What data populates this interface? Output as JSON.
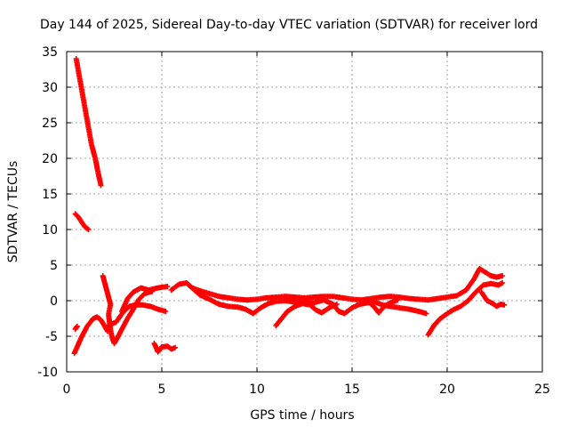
{
  "chart_data": {
    "type": "scatter",
    "title": "Day 144 of 2025, Sidereal Day-to-day VTEC variation (SDTVAR) for receiver lord",
    "xlabel": "GPS time / hours",
    "ylabel": "SDTVAR / TECUs",
    "xlim": [
      0,
      25
    ],
    "ylim": [
      -10,
      35
    ],
    "xticks": [
      0,
      5,
      10,
      15,
      20,
      25
    ],
    "yticks": [
      -10,
      -5,
      0,
      5,
      10,
      15,
      20,
      25,
      30,
      35
    ],
    "grid": true,
    "marker_color": "#ff0000",
    "series": [
      {
        "name": "SDTVAR",
        "segments": [
          [
            [
              0.5,
              34
            ],
            [
              0.7,
              31
            ],
            [
              0.9,
              28
            ],
            [
              1.1,
              25
            ],
            [
              1.3,
              22
            ],
            [
              1.5,
              20
            ],
            [
              1.65,
              18
            ],
            [
              1.8,
              16.2
            ]
          ],
          [
            [
              0.45,
              12.2
            ],
            [
              0.6,
              11.8
            ],
            [
              0.8,
              11
            ],
            [
              0.95,
              10.4
            ],
            [
              1.15,
              10
            ]
          ],
          [
            [
              0.4,
              -7.4
            ],
            [
              0.55,
              -6.5
            ],
            [
              0.8,
              -5
            ],
            [
              1.1,
              -3.5
            ],
            [
              1.4,
              -2.5
            ],
            [
              1.6,
              -2.3
            ],
            [
              1.8,
              -2.7
            ],
            [
              2.0,
              -3.6
            ],
            [
              2.15,
              -4.3
            ]
          ],
          [
            [
              0.45,
              -4
            ],
            [
              0.55,
              -3.6
            ]
          ],
          [
            [
              1.9,
              3.5
            ],
            [
              2.0,
              2.5
            ],
            [
              2.1,
              1.5
            ],
            [
              2.2,
              0.5
            ],
            [
              2.3,
              -0.5
            ],
            [
              2.2,
              -2
            ],
            [
              2.3,
              -4
            ],
            [
              2.4,
              -5.3
            ],
            [
              2.5,
              -6
            ],
            [
              2.65,
              -5.3
            ],
            [
              2.9,
              -4
            ],
            [
              3.2,
              -2.5
            ],
            [
              3.5,
              -1.2
            ],
            [
              3.8,
              0.2
            ],
            [
              4.1,
              1
            ],
            [
              4.5,
              1.3
            ]
          ],
          [
            [
              2.2,
              -3.5
            ],
            [
              2.6,
              -3
            ],
            [
              3.0,
              -1.5
            ],
            [
              3.3,
              -0.8
            ],
            [
              3.6,
              -0.6
            ],
            [
              4.0,
              -0.6
            ],
            [
              4.4,
              -0.8
            ],
            [
              4.8,
              -1.2
            ],
            [
              5.2,
              -1.5
            ]
          ],
          [
            [
              2.9,
              -1.5
            ],
            [
              3.2,
              0.3
            ],
            [
              3.5,
              1.2
            ],
            [
              3.9,
              1.8
            ],
            [
              4.3,
              1.5
            ],
            [
              4.8,
              1.8
            ],
            [
              5.3,
              2
            ]
          ],
          [
            [
              4.6,
              -6
            ],
            [
              4.8,
              -7.2
            ],
            [
              5.0,
              -6.5
            ],
            [
              5.3,
              -6.4
            ],
            [
              5.5,
              -6.8
            ],
            [
              5.7,
              -6.6
            ]
          ],
          [
            [
              5.5,
              1.5
            ],
            [
              5.9,
              2.3
            ],
            [
              6.3,
              2.5
            ],
            [
              6.6,
              1.8
            ],
            [
              7.0,
              1.4
            ],
            [
              7.5,
              1
            ],
            [
              8.0,
              0.6
            ],
            [
              8.5,
              0.4
            ],
            [
              9.0,
              0.2
            ],
            [
              9.5,
              0.1
            ],
            [
              10.0,
              0.2
            ],
            [
              10.5,
              0.4
            ],
            [
              11.0,
              0.5
            ],
            [
              11.5,
              0.6
            ],
            [
              12.0,
              0.5
            ],
            [
              12.5,
              0.4
            ],
            [
              13.0,
              0.5
            ],
            [
              13.5,
              0.6
            ],
            [
              14.0,
              0.6
            ],
            [
              14.5,
              0.4
            ],
            [
              15.0,
              0.2
            ],
            [
              15.5,
              0.1
            ],
            [
              16.0,
              0.3
            ],
            [
              16.5,
              0.5
            ],
            [
              17.0,
              0.6
            ],
            [
              17.5,
              0.5
            ],
            [
              18.0,
              0.3
            ],
            [
              18.5,
              0.2
            ],
            [
              19.0,
              0.1
            ],
            [
              19.5,
              0.3
            ],
            [
              20.0,
              0.5
            ],
            [
              20.5,
              0.7
            ],
            [
              21.0,
              1.5
            ],
            [
              21.4,
              3
            ],
            [
              21.7,
              4.5
            ],
            [
              22.0,
              4
            ],
            [
              22.3,
              3.5
            ],
            [
              22.6,
              3.3
            ],
            [
              22.9,
              3.5
            ]
          ],
          [
            [
              6.5,
              2
            ],
            [
              7.0,
              0.8
            ],
            [
              7.5,
              0.2
            ],
            [
              8.0,
              -0.5
            ],
            [
              8.5,
              -0.8
            ],
            [
              9.0,
              -0.9
            ],
            [
              9.4,
              -1.2
            ],
            [
              9.8,
              -1.8
            ],
            [
              10.2,
              -1
            ],
            [
              10.6,
              -0.4
            ],
            [
              11.0,
              -0.1
            ],
            [
              11.5,
              0
            ],
            [
              12.0,
              -0.2
            ],
            [
              12.5,
              0
            ],
            [
              13.0,
              -0.3
            ],
            [
              13.5,
              0.1
            ],
            [
              14.0,
              -0.5
            ],
            [
              14.3,
              -1.5
            ],
            [
              14.6,
              -1.8
            ],
            [
              15.0,
              -1
            ],
            [
              15.4,
              -0.5
            ],
            [
              15.8,
              -0.3
            ],
            [
              16.2,
              -0.2
            ],
            [
              16.6,
              -0.6
            ],
            [
              17.0,
              -0.8
            ],
            [
              17.5,
              -1
            ],
            [
              18.0,
              -1.2
            ],
            [
              18.5,
              -1.5
            ],
            [
              18.9,
              -1.8
            ]
          ],
          [
            [
              11.0,
              -3.5
            ],
            [
              11.3,
              -2.5
            ],
            [
              11.6,
              -1.5
            ],
            [
              12.0,
              -0.8
            ],
            [
              12.4,
              -0.4
            ],
            [
              12.8,
              -0.6
            ],
            [
              13.1,
              -1.3
            ],
            [
              13.4,
              -1.7
            ],
            [
              13.8,
              -1
            ],
            [
              14.2,
              -0.5
            ]
          ],
          [
            [
              15.9,
              -0.2
            ],
            [
              16.2,
              -1
            ],
            [
              16.4,
              -1.7
            ],
            [
              16.7,
              -0.8
            ],
            [
              17.0,
              -0.3
            ],
            [
              17.4,
              0.1
            ]
          ],
          [
            [
              19.0,
              -4.8
            ],
            [
              19.3,
              -3.5
            ],
            [
              19.6,
              -2.6
            ],
            [
              19.9,
              -2
            ],
            [
              20.3,
              -1.3
            ],
            [
              20.7,
              -0.8
            ],
            [
              21.1,
              0
            ],
            [
              21.5,
              1.2
            ],
            [
              21.9,
              2.2
            ],
            [
              22.3,
              2.4
            ],
            [
              22.7,
              2.2
            ],
            [
              22.9,
              2.5
            ]
          ],
          [
            [
              21.8,
              1.2
            ],
            [
              22.1,
              0
            ],
            [
              22.4,
              -0.4
            ],
            [
              22.6,
              -0.8
            ],
            [
              22.8,
              -0.5
            ],
            [
              23.0,
              -0.6
            ]
          ]
        ]
      }
    ]
  }
}
